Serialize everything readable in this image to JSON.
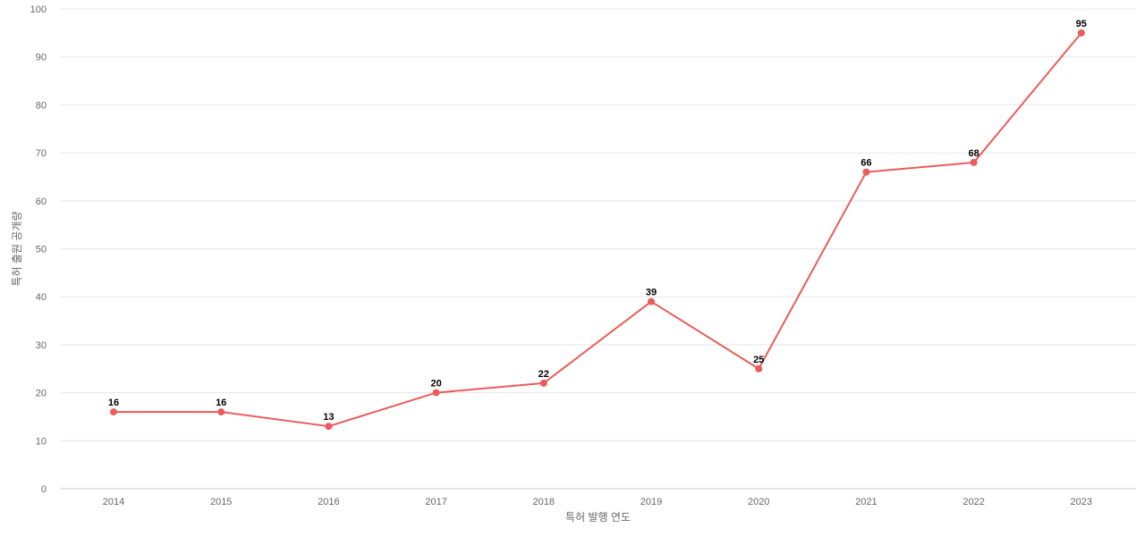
{
  "chart_data": {
    "type": "line",
    "title": "",
    "xlabel": "특허 발행 연도",
    "ylabel": "특허 출원 공개량",
    "x": [
      "2014",
      "2015",
      "2016",
      "2017",
      "2018",
      "2019",
      "2020",
      "2021",
      "2022",
      "2023"
    ],
    "series": [
      {
        "values": [
          16,
          16,
          13,
          20,
          22,
          39,
          25,
          66,
          68,
          95
        ],
        "color": "#ea5c5c"
      }
    ],
    "ylim": [
      0,
      100
    ],
    "yticks": [
      0,
      10,
      20,
      30,
      40,
      50,
      60,
      70,
      80,
      90,
      100
    ],
    "grid": true,
    "data_labels": true,
    "legend": "none"
  }
}
